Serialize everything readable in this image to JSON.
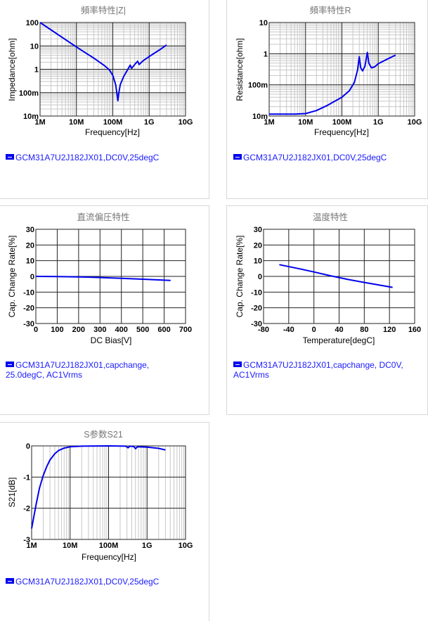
{
  "chart_data": [
    {
      "type": "line",
      "title": "頻率特性|Z|",
      "xlabel": "Frequency[Hz]",
      "ylabel": "Impedance[ohm]",
      "xscale": "log",
      "yscale": "log",
      "xlim": [
        1000000.0,
        10000000000.0
      ],
      "ylim": [
        0.01,
        100
      ],
      "xticks": [
        1000000.0,
        10000000.0,
        100000000.0,
        1000000000.0,
        10000000000.0
      ],
      "xticklabels": [
        "1M",
        "10M",
        "100M",
        "1G",
        "10G"
      ],
      "yticks": [
        0.01,
        0.1,
        1,
        10,
        100
      ],
      "yticklabels": [
        "10m",
        "100m",
        "1",
        "10",
        "100"
      ],
      "grid": true,
      "series": [
        {
          "name": "GCM31A7U2J182JX01,DC0V,25degC",
          "color": "#0000ee",
          "x": [
            1000000.0,
            10000000.0,
            30000000.0,
            60000000.0,
            80000000.0,
            100000000.0,
            120000000.0,
            130000000.0,
            138000000.0,
            145000000.0,
            160000000.0,
            200000000.0,
            250000000.0,
            300000000.0,
            330000000.0,
            400000000.0,
            480000000.0,
            530000000.0,
            700000000.0,
            1000000000.0,
            2000000000.0,
            3000000000.0
          ],
          "y": [
            100,
            9,
            3,
            1.4,
            0.95,
            0.55,
            0.22,
            0.09,
            0.045,
            0.09,
            0.22,
            0.5,
            0.9,
            1.5,
            1.1,
            1.6,
            2.2,
            1.6,
            2.4,
            3.5,
            7,
            11
          ]
        }
      ],
      "legend": "GCM31A7U2J182JX01,DC0V,25degC"
    },
    {
      "type": "line",
      "title": "頻率特性R",
      "xlabel": "Frequency[Hz]",
      "ylabel": "Resistance[ohm]",
      "xscale": "log",
      "yscale": "log",
      "xlim": [
        1000000.0,
        10000000000.0
      ],
      "ylim": [
        0.01,
        10
      ],
      "xticks": [
        1000000.0,
        10000000.0,
        100000000.0,
        1000000000.0,
        10000000000.0
      ],
      "xticklabels": [
        "1M",
        "10M",
        "100M",
        "1G",
        "10G"
      ],
      "yticks": [
        0.01,
        0.1,
        1,
        10
      ],
      "yticklabels": [
        "10m",
        "100m",
        "1",
        "10"
      ],
      "grid": true,
      "series": [
        {
          "name": "GCM31A7U2J182JX01,DC0V,25degC",
          "color": "#0000ee",
          "x": [
            1000000.0,
            5000000.0,
            10000000.0,
            20000000.0,
            40000000.0,
            100000000.0,
            160000000.0,
            220000000.0,
            270000000.0,
            300000000.0,
            330000000.0,
            370000000.0,
            430000000.0,
            500000000.0,
            550000000.0,
            650000000.0,
            800000000.0,
            1000000000.0,
            2000000000.0,
            3000000000.0
          ],
          "y": [
            0.0115,
            0.0115,
            0.012,
            0.015,
            0.022,
            0.04,
            0.065,
            0.12,
            0.3,
            0.8,
            0.35,
            0.28,
            0.4,
            1.1,
            0.5,
            0.35,
            0.38,
            0.48,
            0.72,
            0.9
          ]
        }
      ],
      "legend": "GCM31A7U2J182JX01,DC0V,25degC"
    },
    {
      "type": "line",
      "title": "直流偏圧特性",
      "xlabel": "DC Bias[V]",
      "ylabel": "Cap. Change Rate[%]",
      "xscale": "linear",
      "yscale": "linear",
      "xlim": [
        0,
        700
      ],
      "ylim": [
        -30,
        30
      ],
      "xticks": [
        0,
        100,
        200,
        300,
        400,
        500,
        600,
        700
      ],
      "xticklabels": [
        "0",
        "100",
        "200",
        "300",
        "400",
        "500",
        "600",
        "700"
      ],
      "yticks": [
        -30,
        -20,
        -10,
        0,
        10,
        20,
        30
      ],
      "yticklabels": [
        "-30",
        "-20",
        "-10",
        "0",
        "10",
        "20",
        "30"
      ],
      "grid": true,
      "series": [
        {
          "name": "GCM31A7U2J182JX01,capchange, 25.0degC, AC1Vrms",
          "color": "#0000ee",
          "x": [
            0,
            100,
            200,
            300,
            400,
            500,
            630
          ],
          "y": [
            0,
            -0.1,
            -0.3,
            -0.7,
            -1.2,
            -1.8,
            -2.6
          ]
        }
      ],
      "legend": "GCM31A7U2J182JX01,capchange, 25.0degC, AC1Vrms"
    },
    {
      "type": "line",
      "title": "温度特性",
      "xlabel": "Temperature[degC]",
      "ylabel": "Cap. Change Rate[%]",
      "xscale": "linear",
      "yscale": "linear",
      "xlim": [
        -80,
        160
      ],
      "ylim": [
        -30,
        30
      ],
      "xticks": [
        -80,
        -40,
        0,
        40,
        80,
        120,
        160
      ],
      "xticklabels": [
        "-80",
        "-40",
        "0",
        "40",
        "80",
        "120",
        "160"
      ],
      "yticks": [
        -30,
        -20,
        -10,
        0,
        10,
        20,
        30
      ],
      "yticklabels": [
        "-30",
        "-20",
        "-10",
        "0",
        "10",
        "20",
        "30"
      ],
      "grid": true,
      "series": [
        {
          "name": "GCM31A7U2J182JX01,capchange, DC0V, AC1Vrms",
          "color": "#0000ee",
          "x": [
            -55,
            -25,
            0,
            25,
            55,
            85,
            125
          ],
          "y": [
            7.5,
            5,
            2.8,
            0.5,
            -2,
            -4.2,
            -7
          ]
        }
      ],
      "legend": "GCM31A7U2J182JX01,capchange, DC0V, AC1Vrms"
    },
    {
      "type": "line",
      "title": "S参数S21",
      "xlabel": "Frequency[Hz]",
      "ylabel": "S21[dB]",
      "xscale": "log",
      "yscale": "linear",
      "xlim": [
        1000000.0,
        10000000000.0
      ],
      "ylim": [
        -3,
        0
      ],
      "xticks": [
        1000000.0,
        10000000.0,
        100000000.0,
        1000000000.0,
        10000000000.0
      ],
      "xticklabels": [
        "1M",
        "10M",
        "100M",
        "1G",
        "10G"
      ],
      "yticks": [
        -3,
        -2,
        -1,
        0
      ],
      "yticklabels": [
        "-3",
        "-2",
        "-1",
        "0"
      ],
      "grid": true,
      "series": [
        {
          "name": "GCM31A7U2J182JX01,DC0V,25degC",
          "color": "#0000ee",
          "x": [
            1000000.0,
            1300000.0,
            1600000.0,
            2000000.0,
            2500000.0,
            3000000.0,
            4000000.0,
            5000000.0,
            7000000.0,
            10000000.0,
            20000000.0,
            100000000.0,
            280000000.0,
            320000000.0,
            360000000.0,
            450000000.0,
            500000000.0,
            560000000.0,
            1000000000.0,
            2000000000.0,
            3000000000.0
          ],
          "y": [
            -2.65,
            -1.9,
            -1.35,
            -0.95,
            -0.65,
            -0.45,
            -0.25,
            -0.15,
            -0.07,
            -0.03,
            -0.01,
            0,
            -0.01,
            -0.06,
            -0.01,
            -0.02,
            -0.09,
            -0.03,
            -0.04,
            -0.08,
            -0.13
          ]
        }
      ],
      "legend": "GCM31A7U2J182JX01,DC0V,25degC"
    }
  ]
}
